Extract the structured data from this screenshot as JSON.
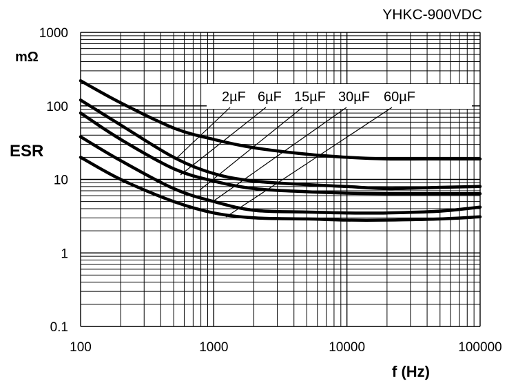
{
  "chart_data": {
    "type": "line",
    "title": "YHKC-900VDC",
    "xlabel": "f (Hz)",
    "ylabel": "ESR",
    "yunit": "mΩ",
    "x_scale": "log",
    "y_scale": "log",
    "xlim": [
      100,
      100000
    ],
    "ylim": [
      0.1,
      1000
    ],
    "x_ticks": [
      "100",
      "1000",
      "10000",
      "100000"
    ],
    "y_ticks": [
      "0.1",
      "1",
      "10",
      "100",
      "1000"
    ],
    "grid": true,
    "legend_labels": [
      "2µF",
      "6µF",
      "15µF",
      "30µF",
      "60µF"
    ],
    "series": [
      {
        "name": "2µF",
        "x": [
          100,
          200,
          500,
          1000,
          2000,
          5000,
          10000,
          20000,
          50000,
          100000
        ],
        "y": [
          220,
          110,
          50,
          35,
          27,
          22,
          20,
          19,
          19,
          19
        ]
      },
      {
        "name": "6µF",
        "x": [
          100,
          200,
          500,
          1000,
          2000,
          5000,
          10000,
          20000,
          50000,
          100000
        ],
        "y": [
          120,
          55,
          20,
          12,
          9.5,
          8.5,
          8,
          7.5,
          7.8,
          8
        ]
      },
      {
        "name": "15µF",
        "x": [
          100,
          200,
          500,
          1000,
          2000,
          5000,
          10000,
          20000,
          50000,
          100000
        ],
        "y": [
          80,
          35,
          14,
          9.5,
          7.5,
          6.8,
          6.5,
          6.4,
          6.4,
          6.4
        ]
      },
      {
        "name": "30µF",
        "x": [
          100,
          200,
          500,
          1000,
          2000,
          5000,
          10000,
          20000,
          50000,
          100000
        ],
        "y": [
          38,
          18,
          7.5,
          5,
          3.8,
          3.6,
          3.5,
          3.5,
          3.7,
          4.2
        ]
      },
      {
        "name": "60µF",
        "x": [
          100,
          200,
          500,
          1000,
          2000,
          5000,
          10000,
          20000,
          50000,
          100000
        ],
        "y": [
          20,
          10,
          5,
          3.5,
          3,
          2.9,
          2.8,
          2.8,
          2.9,
          3.1
        ]
      }
    ],
    "colors": {
      "line": "#000000",
      "grid": "#000000",
      "background": "#ffffff"
    }
  }
}
